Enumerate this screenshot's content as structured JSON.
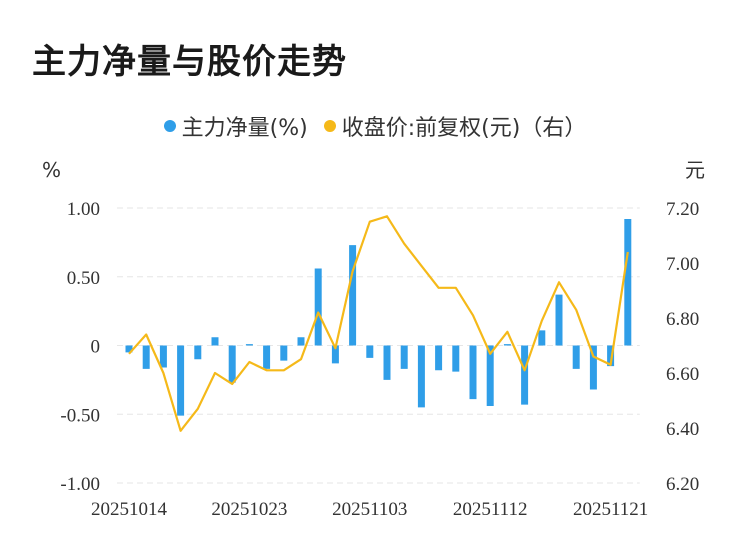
{
  "title": "主力净量与股价走势",
  "legend": {
    "series1": "主力净量(%)",
    "series2": "收盘价:前复权(元)（右）"
  },
  "colors": {
    "bar": "#2f9ee8",
    "line": "#f5b919",
    "grid": "#e6e6e6"
  },
  "chart_data": {
    "type": "bar",
    "title": "主力净量与股价走势",
    "left_unit": "%",
    "right_unit": "元",
    "y_left": {
      "min": -1.0,
      "max": 1.0,
      "ticks": [
        1.0,
        0.5,
        0,
        -0.5,
        -1.0
      ],
      "tick_labels": [
        "1.00",
        "0.50",
        "0",
        "-0.50",
        "-1.00"
      ]
    },
    "y_right": {
      "min": 6.2,
      "max": 7.2,
      "ticks": [
        7.2,
        7.0,
        6.8,
        6.6,
        6.4,
        6.2
      ],
      "tick_labels": [
        "7.20",
        "7.00",
        "6.80",
        "6.60",
        "6.40",
        "6.20"
      ]
    },
    "x_tick_labels": [
      "20251014",
      "20251023",
      "20251103",
      "20251112",
      "20251121"
    ],
    "x_tick_indices": [
      0,
      7,
      14,
      21,
      28
    ],
    "grid": true,
    "series": [
      {
        "name": "主力净量(%)",
        "type": "bar",
        "axis": "left",
        "values": [
          -0.05,
          -0.17,
          -0.16,
          -0.51,
          -0.1,
          0.06,
          -0.27,
          0.01,
          -0.17,
          -0.11,
          0.06,
          0.56,
          -0.13,
          0.73,
          -0.09,
          -0.25,
          -0.17,
          -0.45,
          -0.18,
          -0.19,
          -0.39,
          -0.44,
          0.01,
          -0.43,
          0.11,
          0.37,
          -0.17,
          -0.32,
          -0.15,
          0.92
        ]
      },
      {
        "name": "收盘价:前复权(元)（右）",
        "type": "line",
        "axis": "right",
        "values": [
          6.67,
          6.74,
          6.6,
          6.39,
          6.47,
          6.6,
          6.56,
          6.64,
          6.61,
          6.61,
          6.65,
          6.82,
          6.69,
          6.97,
          7.15,
          7.17,
          7.07,
          6.99,
          6.91,
          6.91,
          6.81,
          6.67,
          6.75,
          6.61,
          6.79,
          6.93,
          6.83,
          6.66,
          6.63,
          7.04
        ]
      }
    ]
  }
}
